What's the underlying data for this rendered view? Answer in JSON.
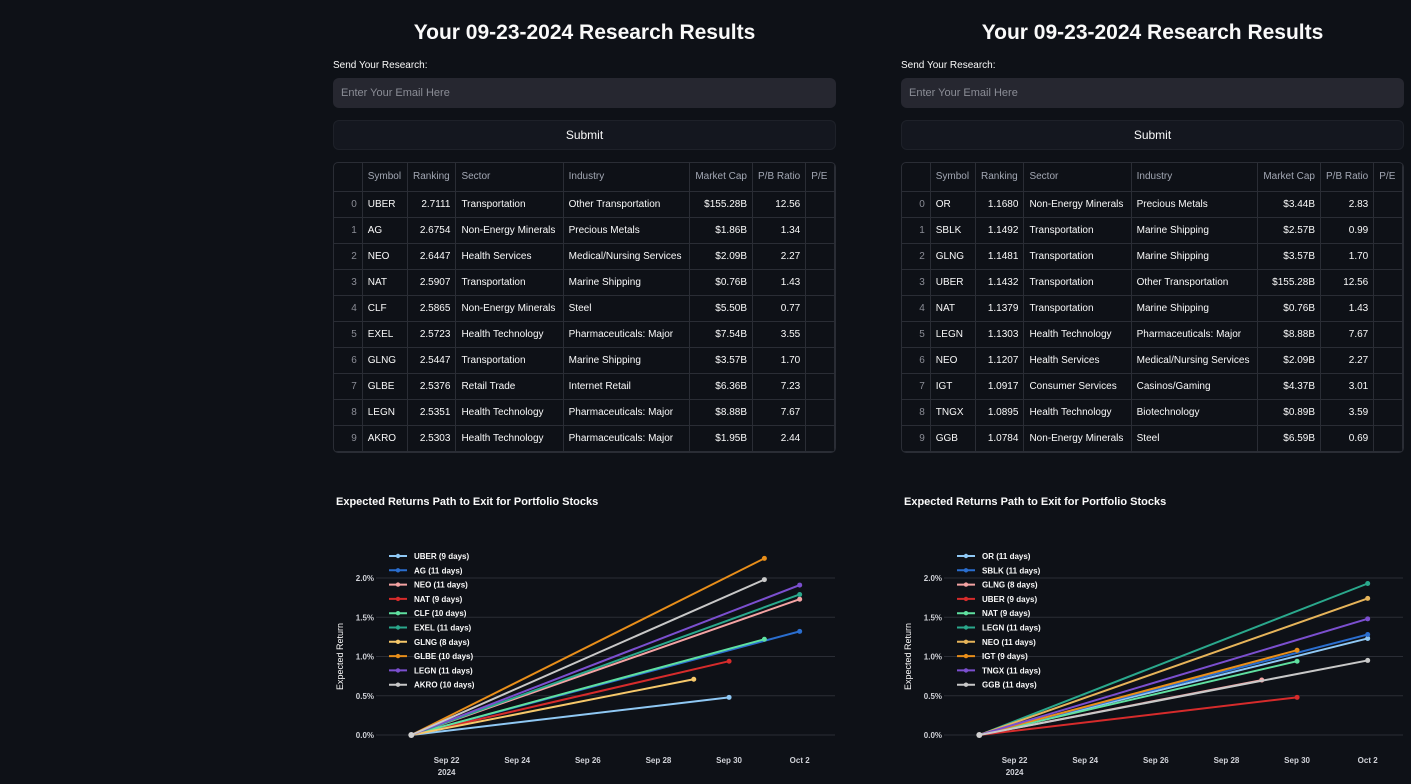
{
  "panels": [
    {
      "title": "Your 09-23-2024 Research Results",
      "send_label": "Send Your Research:",
      "email_placeholder": "Enter Your Email Here",
      "submit_label": "Submit",
      "table": {
        "headers": [
          "",
          "Symbol",
          "Ranking",
          "Sector",
          "Industry",
          "Market Cap",
          "P/B Ratio",
          "P/E"
        ],
        "rows": [
          [
            "0",
            "UBER",
            "2.7111",
            "Transportation",
            "Other Transportation",
            "$155.28B",
            "12.56",
            ""
          ],
          [
            "1",
            "AG",
            "2.6754",
            "Non-Energy Minerals",
            "Precious Metals",
            "$1.86B",
            "1.34",
            ""
          ],
          [
            "2",
            "NEO",
            "2.6447",
            "Health Services",
            "Medical/Nursing Services",
            "$2.09B",
            "2.27",
            ""
          ],
          [
            "3",
            "NAT",
            "2.5907",
            "Transportation",
            "Marine Shipping",
            "$0.76B",
            "1.43",
            ""
          ],
          [
            "4",
            "CLF",
            "2.5865",
            "Non-Energy Minerals",
            "Steel",
            "$5.50B",
            "0.77",
            ""
          ],
          [
            "5",
            "EXEL",
            "2.5723",
            "Health Technology",
            "Pharmaceuticals: Major",
            "$7.54B",
            "3.55",
            ""
          ],
          [
            "6",
            "GLNG",
            "2.5447",
            "Transportation",
            "Marine Shipping",
            "$3.57B",
            "1.70",
            ""
          ],
          [
            "7",
            "GLBE",
            "2.5376",
            "Retail Trade",
            "Internet Retail",
            "$6.36B",
            "7.23",
            ""
          ],
          [
            "8",
            "LEGN",
            "2.5351",
            "Health Technology",
            "Pharmaceuticals: Major",
            "$8.88B",
            "7.67",
            ""
          ],
          [
            "9",
            "AKRO",
            "2.5303",
            "Health Technology",
            "Pharmaceuticals: Major",
            "$1.95B",
            "2.44",
            ""
          ]
        ]
      },
      "chart_title": "Expected Returns Path to Exit for Portfolio Stocks",
      "chart_data": {
        "type": "line",
        "title": "Expected Returns Path to Exit for Portfolio Stocks",
        "xlabel": "",
        "ylabel": "Expected Return",
        "x_ticks": [
          "Sep 22\n2024",
          "Sep 24",
          "Sep 26",
          "Sep 28",
          "Sep 30",
          "Oct 2"
        ],
        "y_ticks": [
          "0.0%",
          "0.5%",
          "1.0%",
          "1.5%",
          "2.0%"
        ],
        "xlim": [
          "2024-09-20",
          "2024-10-03"
        ],
        "ylim": [
          0,
          2.0
        ],
        "legend_position": "top-left",
        "start_date": "2024-09-21",
        "series": [
          {
            "name": "UBER (9 days)",
            "color": "#8fc8f4",
            "end_date": "2024-09-30",
            "end_value": 0.48
          },
          {
            "name": "AG (11 days)",
            "color": "#2a6ecf",
            "end_date": "2024-10-02",
            "end_value": 1.32
          },
          {
            "name": "NEO (11 days)",
            "color": "#f4a3a3",
            "end_date": "2024-10-02",
            "end_value": 1.73
          },
          {
            "name": "NAT (9 days)",
            "color": "#d62b2b",
            "end_date": "2024-09-30",
            "end_value": 0.94
          },
          {
            "name": "CLF (10 days)",
            "color": "#5fe0a0",
            "end_date": "2024-10-01",
            "end_value": 1.22
          },
          {
            "name": "EXEL (11 days)",
            "color": "#2aa88c",
            "end_date": "2024-10-02",
            "end_value": 1.79
          },
          {
            "name": "GLNG (8 days)",
            "color": "#f6c86a",
            "end_date": "2024-09-29",
            "end_value": 0.71
          },
          {
            "name": "GLBE (10 days)",
            "color": "#e88e1a",
            "end_date": "2024-10-01",
            "end_value": 2.25
          },
          {
            "name": "LEGN (11 days)",
            "color": "#7b4fcf",
            "end_date": "2024-10-02",
            "end_value": 1.91
          },
          {
            "name": "AKRO (10 days)",
            "color": "#c8c8c8",
            "end_date": "2024-10-01",
            "end_value": 1.98
          }
        ]
      }
    },
    {
      "title": "Your 09-23-2024 Research Results",
      "send_label": "Send Your Research:",
      "email_placeholder": "Enter Your Email Here",
      "submit_label": "Submit",
      "table": {
        "headers": [
          "",
          "Symbol",
          "Ranking",
          "Sector",
          "Industry",
          "Market Cap",
          "P/B Ratio",
          "P/E"
        ],
        "rows": [
          [
            "0",
            "OR",
            "1.1680",
            "Non-Energy Minerals",
            "Precious Metals",
            "$3.44B",
            "2.83",
            ""
          ],
          [
            "1",
            "SBLK",
            "1.1492",
            "Transportation",
            "Marine Shipping",
            "$2.57B",
            "0.99",
            ""
          ],
          [
            "2",
            "GLNG",
            "1.1481",
            "Transportation",
            "Marine Shipping",
            "$3.57B",
            "1.70",
            ""
          ],
          [
            "3",
            "UBER",
            "1.1432",
            "Transportation",
            "Other Transportation",
            "$155.28B",
            "12.56",
            ""
          ],
          [
            "4",
            "NAT",
            "1.1379",
            "Transportation",
            "Marine Shipping",
            "$0.76B",
            "1.43",
            ""
          ],
          [
            "5",
            "LEGN",
            "1.1303",
            "Health Technology",
            "Pharmaceuticals: Major",
            "$8.88B",
            "7.67",
            ""
          ],
          [
            "6",
            "NEO",
            "1.1207",
            "Health Services",
            "Medical/Nursing Services",
            "$2.09B",
            "2.27",
            ""
          ],
          [
            "7",
            "IGT",
            "1.0917",
            "Consumer Services",
            "Casinos/Gaming",
            "$4.37B",
            "3.01",
            ""
          ],
          [
            "8",
            "TNGX",
            "1.0895",
            "Health Technology",
            "Biotechnology",
            "$0.89B",
            "3.59",
            ""
          ],
          [
            "9",
            "GGB",
            "1.0784",
            "Non-Energy Minerals",
            "Steel",
            "$6.59B",
            "0.69",
            ""
          ]
        ]
      },
      "chart_title": "Expected Returns Path to Exit for Portfolio Stocks",
      "chart_data": {
        "type": "line",
        "title": "Expected Returns Path to Exit for Portfolio Stocks",
        "xlabel": "",
        "ylabel": "Expected Return",
        "x_ticks": [
          "Sep 22\n2024",
          "Sep 24",
          "Sep 26",
          "Sep 28",
          "Sep 30",
          "Oct 2"
        ],
        "y_ticks": [
          "0.0%",
          "0.5%",
          "1.0%",
          "1.5%",
          "2.0%"
        ],
        "xlim": [
          "2024-09-20",
          "2024-10-03"
        ],
        "ylim": [
          0,
          2.0
        ],
        "legend_position": "top-left",
        "start_date": "2024-09-21",
        "series": [
          {
            "name": "OR (11 days)",
            "color": "#8fc8f4",
            "end_date": "2024-10-02",
            "end_value": 1.23
          },
          {
            "name": "SBLK (11 days)",
            "color": "#2a6ecf",
            "end_date": "2024-10-02",
            "end_value": 1.28
          },
          {
            "name": "GLNG (8 days)",
            "color": "#f4a3a3",
            "end_date": "2024-09-29",
            "end_value": 0.7
          },
          {
            "name": "UBER (9 days)",
            "color": "#d62b2b",
            "end_date": "2024-09-30",
            "end_value": 0.48
          },
          {
            "name": "NAT (9 days)",
            "color": "#5fe0a0",
            "end_date": "2024-09-30",
            "end_value": 0.94
          },
          {
            "name": "LEGN (11 days)",
            "color": "#2aa88c",
            "end_date": "2024-10-02",
            "end_value": 1.93
          },
          {
            "name": "NEO (11 days)",
            "color": "#e6b45a",
            "end_date": "2024-10-02",
            "end_value": 1.74
          },
          {
            "name": "IGT (9 days)",
            "color": "#e88e1a",
            "end_date": "2024-09-30",
            "end_value": 1.08
          },
          {
            "name": "TNGX (11 days)",
            "color": "#7b4fcf",
            "end_date": "2024-10-02",
            "end_value": 1.48
          },
          {
            "name": "GGB (11 days)",
            "color": "#c8c8c8",
            "end_date": "2024-10-02",
            "end_value": 0.95
          }
        ]
      }
    }
  ]
}
